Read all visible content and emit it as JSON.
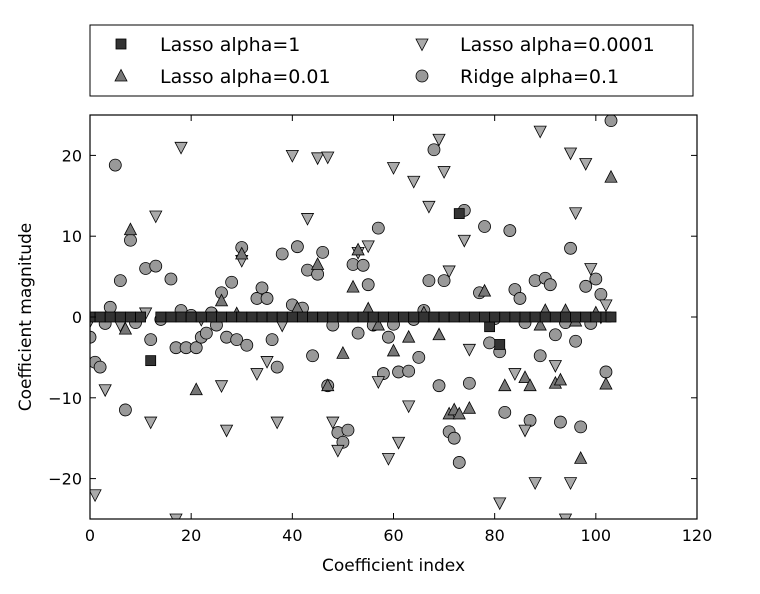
{
  "chart_data": {
    "type": "scatter",
    "xlabel": "Coefficient index",
    "ylabel": "Coefficient magnitude",
    "xlim": [
      0,
      120
    ],
    "ylim": [
      -25,
      25
    ],
    "xticks": [
      0,
      20,
      40,
      60,
      80,
      100,
      120
    ],
    "yticks": [
      -20,
      -10,
      0,
      10,
      20
    ],
    "xtick_labels": [
      "0",
      "20",
      "40",
      "60",
      "80",
      "100",
      "120"
    ],
    "ytick_labels": [
      "−20",
      "−10",
      "0",
      "10",
      "20"
    ],
    "grid": false,
    "legend_placement": "top, outside plot, two columns",
    "series": [
      {
        "name": "Lasso alpha=1",
        "marker": "square",
        "color": "#333333",
        "points": [
          [
            12,
            -5.4
          ],
          [
            73,
            12.8
          ],
          [
            79,
            -1.2
          ],
          [
            81,
            -3.4
          ],
          [
            0,
            0
          ],
          [
            2,
            0
          ],
          [
            4,
            0
          ],
          [
            6,
            0
          ],
          [
            8,
            0
          ],
          [
            10,
            0
          ],
          [
            14,
            0
          ],
          [
            16,
            0
          ],
          [
            18,
            0
          ],
          [
            20,
            0
          ],
          [
            22,
            0
          ],
          [
            24,
            0
          ],
          [
            26,
            0
          ],
          [
            28,
            0
          ],
          [
            30,
            0
          ],
          [
            32,
            0
          ],
          [
            34,
            0
          ],
          [
            36,
            0
          ],
          [
            38,
            0
          ],
          [
            40,
            0
          ],
          [
            42,
            0
          ],
          [
            44,
            0
          ],
          [
            46,
            0
          ],
          [
            48,
            0
          ],
          [
            50,
            0
          ],
          [
            52,
            0
          ],
          [
            54,
            0
          ],
          [
            56,
            0
          ],
          [
            58,
            0
          ],
          [
            60,
            0
          ],
          [
            62,
            0
          ],
          [
            64,
            0
          ],
          [
            66,
            0
          ],
          [
            68,
            0
          ],
          [
            70,
            0
          ],
          [
            72,
            0
          ],
          [
            74,
            0
          ],
          [
            76,
            0
          ],
          [
            78,
            0
          ],
          [
            80,
            0
          ],
          [
            82,
            0
          ],
          [
            84,
            0
          ],
          [
            86,
            0
          ],
          [
            88,
            0
          ],
          [
            90,
            0
          ],
          [
            92,
            0
          ],
          [
            94,
            0
          ],
          [
            96,
            0
          ],
          [
            98,
            0
          ],
          [
            100,
            0
          ],
          [
            102,
            0
          ],
          [
            103,
            0
          ]
        ]
      },
      {
        "name": "Lasso alpha=0.01",
        "marker": "triangle-up",
        "color": "#777777",
        "points": [
          [
            7,
            -1.5
          ],
          [
            8,
            10.8
          ],
          [
            21,
            -9
          ],
          [
            25,
            0
          ],
          [
            26,
            2
          ],
          [
            29,
            0.4
          ],
          [
            30,
            7.8
          ],
          [
            41,
            1.1
          ],
          [
            45,
            6.5
          ],
          [
            47,
            -8.5
          ],
          [
            50,
            -4.5
          ],
          [
            52,
            3.7
          ],
          [
            53,
            8.3
          ],
          [
            55,
            1
          ],
          [
            57,
            -1
          ],
          [
            60,
            -4.2
          ],
          [
            63,
            -2.5
          ],
          [
            66,
            0.5
          ],
          [
            69,
            -2.2
          ],
          [
            71,
            -12
          ],
          [
            72,
            -11.5
          ],
          [
            73,
            -12
          ],
          [
            75,
            -11.3
          ],
          [
            78,
            3.2
          ],
          [
            82,
            -8.5
          ],
          [
            86,
            -7.5
          ],
          [
            87,
            -8.5
          ],
          [
            89,
            -1
          ],
          [
            90,
            0.8
          ],
          [
            92,
            -8.2
          ],
          [
            93,
            -7.8
          ],
          [
            94,
            0.8
          ],
          [
            96,
            -0.5
          ],
          [
            97,
            -17.5
          ],
          [
            100,
            0.5
          ],
          [
            102,
            -8.3
          ],
          [
            103,
            17.3
          ]
        ]
      },
      {
        "name": "Lasso alpha=0.0001",
        "marker": "triangle-down",
        "color": "#aaaaaa",
        "points": [
          [
            0,
            -0.5
          ],
          [
            1,
            -22
          ],
          [
            3,
            -9
          ],
          [
            6,
            -1
          ],
          [
            11,
            0.5
          ],
          [
            12,
            -13
          ],
          [
            13,
            12.5
          ],
          [
            17,
            -25
          ],
          [
            18,
            21
          ],
          [
            22,
            -0.3
          ],
          [
            26,
            -8.5
          ],
          [
            27,
            -14
          ],
          [
            30,
            7
          ],
          [
            33,
            -7
          ],
          [
            35,
            -5.5
          ],
          [
            37,
            -13
          ],
          [
            38,
            -1
          ],
          [
            40,
            20
          ],
          [
            43,
            12.2
          ],
          [
            45,
            19.7
          ],
          [
            47,
            19.8
          ],
          [
            48,
            -13
          ],
          [
            49,
            -16.5
          ],
          [
            53,
            8
          ],
          [
            55,
            8.8
          ],
          [
            57,
            -8
          ],
          [
            59,
            -17.5
          ],
          [
            60,
            18.5
          ],
          [
            61,
            -15.5
          ],
          [
            63,
            -11
          ],
          [
            64,
            16.8
          ],
          [
            67,
            13.7
          ],
          [
            69,
            22
          ],
          [
            70,
            18
          ],
          [
            71,
            5.7
          ],
          [
            74,
            9.5
          ],
          [
            75,
            -4
          ],
          [
            81,
            -23
          ],
          [
            84,
            -7
          ],
          [
            86,
            -14
          ],
          [
            88,
            -20.5
          ],
          [
            89,
            23
          ],
          [
            92,
            -6
          ],
          [
            94,
            -25
          ],
          [
            95,
            -20.5
          ],
          [
            95,
            20.3
          ],
          [
            96,
            12.9
          ],
          [
            98,
            19
          ],
          [
            99,
            6
          ],
          [
            101,
            0
          ],
          [
            102,
            1.5
          ]
        ]
      },
      {
        "name": "Ridge alpha=0.1",
        "marker": "circle",
        "color": "#999999",
        "points": [
          [
            0,
            -2.5
          ],
          [
            1,
            -5.6
          ],
          [
            2,
            -6.2
          ],
          [
            3,
            -0.8
          ],
          [
            4,
            1.2
          ],
          [
            5,
            18.8
          ],
          [
            6,
            4.5
          ],
          [
            7,
            -11.5
          ],
          [
            8,
            9.5
          ],
          [
            9,
            -0.7
          ],
          [
            11,
            6
          ],
          [
            12,
            -2.8
          ],
          [
            13,
            6.3
          ],
          [
            14,
            -0.3
          ],
          [
            16,
            4.7
          ],
          [
            17,
            -3.8
          ],
          [
            18,
            0.8
          ],
          [
            19,
            -3.8
          ],
          [
            20,
            0.2
          ],
          [
            21,
            -3.8
          ],
          [
            22,
            -2.5
          ],
          [
            23,
            -2
          ],
          [
            24,
            0.5
          ],
          [
            25,
            -1
          ],
          [
            26,
            3
          ],
          [
            27,
            -2.5
          ],
          [
            28,
            4.3
          ],
          [
            29,
            -2.8
          ],
          [
            30,
            8.6
          ],
          [
            31,
            -3.5
          ],
          [
            33,
            2.3
          ],
          [
            34,
            3.6
          ],
          [
            35,
            2.3
          ],
          [
            36,
            -2.8
          ],
          [
            37,
            -6.2
          ],
          [
            38,
            7.8
          ],
          [
            40,
            1.5
          ],
          [
            41,
            8.7
          ],
          [
            42,
            1.1
          ],
          [
            43,
            5.8
          ],
          [
            44,
            -4.8
          ],
          [
            45,
            5.3
          ],
          [
            46,
            8
          ],
          [
            47,
            -8.5
          ],
          [
            48,
            -1
          ],
          [
            49,
            -14.3
          ],
          [
            50,
            -15.5
          ],
          [
            51,
            -14
          ],
          [
            52,
            6.5
          ],
          [
            53,
            -2
          ],
          [
            54,
            6.4
          ],
          [
            55,
            4
          ],
          [
            56,
            -1
          ],
          [
            57,
            11
          ],
          [
            58,
            -7
          ],
          [
            59,
            -2.5
          ],
          [
            60,
            -0.9
          ],
          [
            61,
            -6.8
          ],
          [
            63,
            -6.7
          ],
          [
            64,
            -0.3
          ],
          [
            65,
            -5
          ],
          [
            66,
            0.8
          ],
          [
            67,
            4.5
          ],
          [
            68,
            20.7
          ],
          [
            69,
            -8.5
          ],
          [
            70,
            4.5
          ],
          [
            71,
            -14.2
          ],
          [
            72,
            -15
          ],
          [
            73,
            -18
          ],
          [
            74,
            13.2
          ],
          [
            75,
            -8.2
          ],
          [
            77,
            3
          ],
          [
            78,
            11.2
          ],
          [
            79,
            -3.2
          ],
          [
            80,
            -0.2
          ],
          [
            81,
            -4.3
          ],
          [
            82,
            -11.8
          ],
          [
            83,
            10.7
          ],
          [
            84,
            3.4
          ],
          [
            85,
            2.3
          ],
          [
            86,
            -0.7
          ],
          [
            87,
            -12.8
          ],
          [
            88,
            4.5
          ],
          [
            89,
            -4.8
          ],
          [
            90,
            4.8
          ],
          [
            91,
            4
          ],
          [
            92,
            -2.2
          ],
          [
            93,
            -13
          ],
          [
            94,
            -0.7
          ],
          [
            95,
            8.5
          ],
          [
            96,
            -3
          ],
          [
            97,
            -13.6
          ],
          [
            98,
            3.8
          ],
          [
            99,
            -0.8
          ],
          [
            100,
            4.7
          ],
          [
            101,
            2.8
          ],
          [
            102,
            -6.8
          ],
          [
            103,
            24.3
          ]
        ]
      }
    ]
  }
}
